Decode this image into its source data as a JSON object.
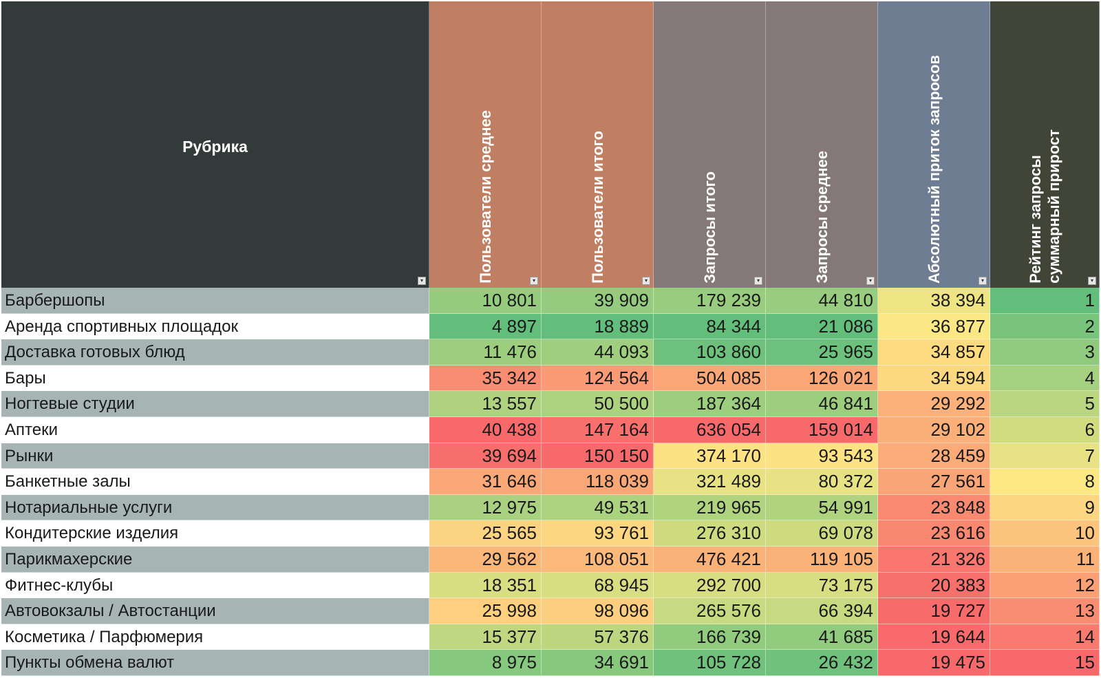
{
  "table": {
    "columns": [
      {
        "label": "Рубрика",
        "bg": "#323a3a"
      },
      {
        "label": "Пользователи среднее",
        "bg": "#c07f62"
      },
      {
        "label": "Пользователи итого",
        "bg": "#c07f62"
      },
      {
        "label": "Запросы итого",
        "bg": "#857878"
      },
      {
        "label": "Запросы среднее",
        "bg": "#857878"
      },
      {
        "label": "Абсолютный приток запросов",
        "bg": "#6e7d91"
      },
      {
        "label": "Рейтинг запросы\nсуммарный прирост",
        "bg": "#404537"
      }
    ],
    "rows": [
      {
        "name": "Барбершопы",
        "values": [
          "10 801",
          "39 909",
          "179 239",
          "44 810",
          "38 394",
          "1"
        ]
      },
      {
        "name": "Аренда спортивных площадок",
        "values": [
          "4 897",
          "18 889",
          "84 344",
          "21 086",
          "36 877",
          "2"
        ]
      },
      {
        "name": "Доставка готовых блюд",
        "values": [
          "11 476",
          "44 093",
          "103 860",
          "25 965",
          "34 857",
          "3"
        ]
      },
      {
        "name": "Бары",
        "values": [
          "35 342",
          "124 564",
          "504 085",
          "126 021",
          "34 594",
          "4"
        ]
      },
      {
        "name": "Ногтевые студии",
        "values": [
          "13 557",
          "50 500",
          "187 364",
          "46 841",
          "29 292",
          "5"
        ]
      },
      {
        "name": "Аптеки",
        "values": [
          "40 438",
          "147 164",
          "636 054",
          "159 014",
          "29 102",
          "6"
        ]
      },
      {
        "name": "Рынки",
        "values": [
          "39 694",
          "150 150",
          "374 170",
          "93 543",
          "28 459",
          "7"
        ]
      },
      {
        "name": "Банкетные залы",
        "values": [
          "31 646",
          "118 039",
          "321 489",
          "80 372",
          "27 561",
          "8"
        ]
      },
      {
        "name": "Нотариальные услуги",
        "values": [
          "12 975",
          "49 531",
          "219 965",
          "54 991",
          "23 848",
          "9"
        ]
      },
      {
        "name": "Кондитерские изделия",
        "values": [
          "25 565",
          "93 761",
          "276 310",
          "69 078",
          "23 616",
          "10"
        ]
      },
      {
        "name": "Парикмахерские",
        "values": [
          "29 562",
          "108 051",
          "476 421",
          "119 105",
          "21 326",
          "11"
        ]
      },
      {
        "name": "Фитнес-клубы",
        "values": [
          "18 351",
          "68 945",
          "292 700",
          "73 175",
          "20 383",
          "12"
        ]
      },
      {
        "name": "Автовокзалы / Автостанции",
        "values": [
          "25 998",
          "98 096",
          "265 576",
          "66 394",
          "19 727",
          "13"
        ]
      },
      {
        "name": "Косметика / Парфюмерия",
        "values": [
          "15 377",
          "57 376",
          "166 739",
          "41 685",
          "19 644",
          "14"
        ]
      },
      {
        "name": "Пункты обмена валют",
        "values": [
          "8 975",
          "34 691",
          "105 728",
          "26 432",
          "19 475",
          "15"
        ]
      }
    ],
    "scale_colors": {
      "low_good": "#63be7b",
      "mid": "#fde884",
      "high_bad": "#f8696b"
    }
  }
}
